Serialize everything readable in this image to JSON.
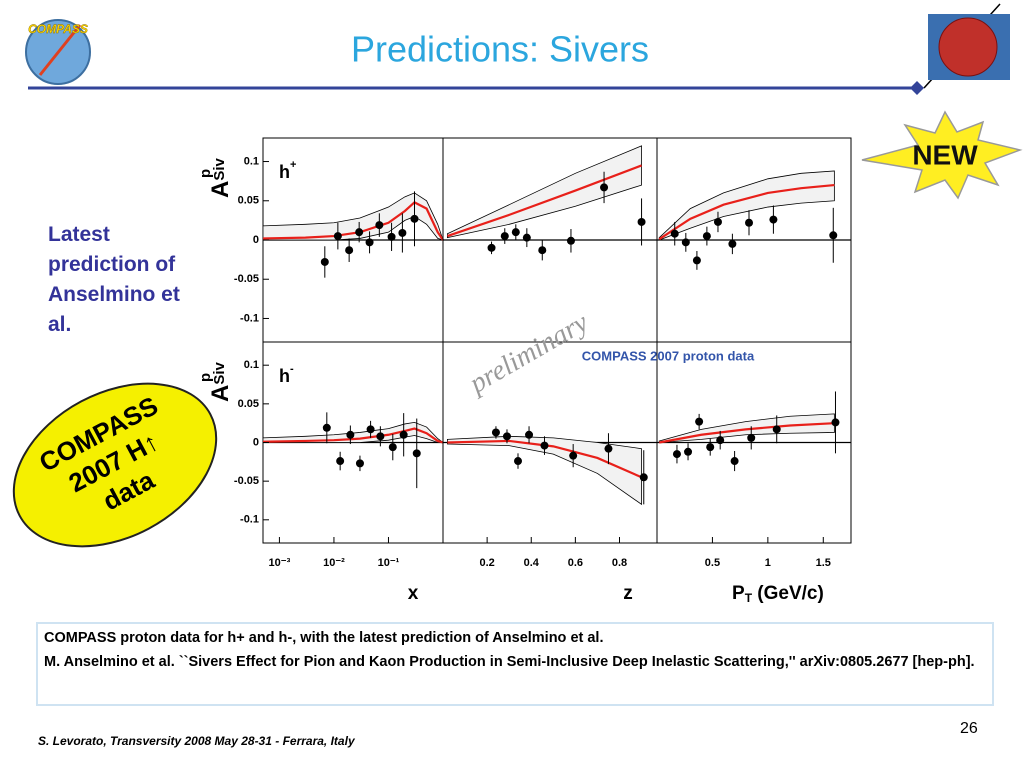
{
  "header": {
    "title": "Predictions: Sivers",
    "logo_text": "COMPASS"
  },
  "sidebar": "Latest prediction of Anselmino et al.",
  "badge_new": "NEW",
  "badge_data": [
    "COMPASS",
    "2007 H↑",
    "data"
  ],
  "annotations": {
    "watermark": "preliminary",
    "dataset": "COMPASS 2007 proton data"
  },
  "caption": [
    "COMPASS proton data for h+ and h-, with the latest prediction of Anselmino et al.",
    "M. Anselmino et al. ``Sivers Effect for Pion and Kaon Production in Semi-Inclusive Deep Inelastic Scattering,''   arXiv:0805.2677 [hep-ph]."
  ],
  "footer": "S. Levorato, Transversity 2008 May 28-31 - Ferrara, Italy",
  "page_number": "26",
  "chart_data": [
    {
      "type": "scatter",
      "log_x": true,
      "panel_label": "h",
      "panel_label_sup": "+",
      "ylabel": "A",
      "ylabel_sup": "p",
      "ylabel_sub": "Siv",
      "xlim": [
        0.0005,
        1
      ],
      "ylim": [
        -0.13,
        0.13
      ],
      "yticks": [
        0.1,
        0.05,
        0,
        -0.05,
        -0.1
      ],
      "x": [
        0.0068,
        0.0118,
        0.019,
        0.029,
        0.045,
        0.068,
        0.114,
        0.18,
        0.3
      ],
      "values": [
        -0.028,
        0.005,
        -0.013,
        0.01,
        -0.003,
        0.019,
        0.004,
        0.009,
        0.027
      ],
      "errors": [
        0.02,
        0.017,
        0.015,
        0.013,
        0.014,
        0.015,
        0.018,
        0.025,
        0.035
      ],
      "curve": {
        "x": [
          0.0005,
          0.003,
          0.01,
          0.03,
          0.1,
          0.2,
          0.3,
          0.5,
          0.8,
          1
        ],
        "values": [
          0.002,
          0.003,
          0.005,
          0.01,
          0.022,
          0.037,
          0.048,
          0.04,
          0.01,
          0
        ],
        "upper": [
          0.018,
          0.02,
          0.022,
          0.028,
          0.042,
          0.055,
          0.06,
          0.05,
          0.02,
          0
        ],
        "lower": [
          0,
          0,
          0,
          0.002,
          0.01,
          0.025,
          0.03,
          0.02,
          0.002,
          0
        ]
      }
    },
    {
      "type": "scatter",
      "xlim": [
        0,
        0.97
      ],
      "ylim": [
        -0.13,
        0.13
      ],
      "x": [
        0.22,
        0.28,
        0.33,
        0.38,
        0.45,
        0.58,
        0.73,
        0.9
      ],
      "values": [
        -0.01,
        0.005,
        0.01,
        0.003,
        -0.013,
        -0.001,
        0.067,
        0.023
      ],
      "errors": [
        0.008,
        0.01,
        0.01,
        0.012,
        0.013,
        0.015,
        0.02,
        0.03
      ],
      "curve": {
        "x": [
          0.02,
          0.3,
          0.6,
          0.9
        ],
        "values": [
          0.005,
          0.032,
          0.063,
          0.095
        ],
        "upper": [
          0.008,
          0.045,
          0.085,
          0.12
        ],
        "lower": [
          0.003,
          0.02,
          0.043,
          0.07
        ]
      }
    },
    {
      "type": "scatter",
      "xlim": [
        0,
        1.75
      ],
      "ylim": [
        -0.13,
        0.13
      ],
      "x": [
        0.16,
        0.26,
        0.36,
        0.45,
        0.55,
        0.68,
        0.83,
        1.05,
        1.59
      ],
      "values": [
        0.008,
        -0.003,
        -0.026,
        0.005,
        0.023,
        -0.005,
        0.022,
        0.026,
        0.006
      ],
      "errors": [
        0.015,
        0.012,
        0.012,
        0.012,
        0.013,
        0.013,
        0.016,
        0.018,
        0.035
      ],
      "curve": {
        "x": [
          0.02,
          0.3,
          0.6,
          1.0,
          1.3,
          1.6
        ],
        "values": [
          0.001,
          0.027,
          0.045,
          0.06,
          0.066,
          0.07
        ],
        "upper": [
          0.003,
          0.04,
          0.06,
          0.078,
          0.085,
          0.088
        ],
        "lower": [
          0,
          0.015,
          0.03,
          0.042,
          0.047,
          0.05
        ]
      }
    },
    {
      "type": "scatter",
      "log_x": true,
      "panel_label": "h",
      "panel_label_sup": "-",
      "ylabel": "A",
      "ylabel_sup": "p",
      "ylabel_sub": "Siv",
      "xlabel": "x",
      "xlim": [
        0.0005,
        1
      ],
      "ylim": [
        -0.13,
        0.13
      ],
      "yticks": [
        0.1,
        0.05,
        0,
        -0.05,
        -0.1
      ],
      "xticks": [
        {
          "value": 0.001,
          "label": "10⁻³"
        },
        {
          "value": 0.01,
          "label": "10⁻²"
        },
        {
          "value": 0.1,
          "label": "10⁻¹"
        }
      ],
      "x": [
        0.0074,
        0.013,
        0.02,
        0.03,
        0.047,
        0.071,
        0.12,
        0.19,
        0.33
      ],
      "values": [
        0.019,
        -0.024,
        0.01,
        -0.027,
        0.017,
        0.008,
        -0.006,
        0.01,
        -0.014
      ],
      "errors": [
        0.02,
        0.012,
        0.012,
        0.01,
        0.011,
        0.013,
        0.017,
        0.028,
        0.045
      ],
      "curve": {
        "x": [
          0.0005,
          0.003,
          0.01,
          0.03,
          0.1,
          0.2,
          0.3,
          0.5,
          0.8,
          1
        ],
        "values": [
          0.001,
          0.002,
          0.003,
          0.005,
          0.01,
          0.015,
          0.018,
          0.012,
          0.002,
          0
        ],
        "upper": [
          0.006,
          0.008,
          0.01,
          0.013,
          0.018,
          0.024,
          0.026,
          0.02,
          0.005,
          0
        ],
        "lower": [
          0,
          0,
          0,
          0,
          0.003,
          0.007,
          0.009,
          0.005,
          0,
          0
        ]
      }
    },
    {
      "type": "scatter",
      "xlabel": "z",
      "xlim": [
        0,
        0.97
      ],
      "ylim": [
        -0.13,
        0.13
      ],
      "xticks": [
        0.2,
        0.4,
        0.6,
        0.8
      ],
      "x": [
        0.24,
        0.29,
        0.34,
        0.39,
        0.46,
        0.59,
        0.75,
        0.91
      ],
      "values": [
        0.013,
        0.008,
        -0.024,
        0.01,
        -0.004,
        -0.017,
        -0.008,
        -0.045
      ],
      "errors": [
        0.008,
        0.009,
        0.01,
        0.011,
        0.012,
        0.015,
        0.02,
        0.035
      ],
      "curve": {
        "x": [
          0.02,
          0.3,
          0.5,
          0.7,
          0.9
        ],
        "values": [
          0,
          0.002,
          -0.005,
          -0.02,
          -0.045
        ],
        "upper": [
          0.004,
          0.008,
          0.006,
          0,
          -0.008
        ],
        "lower": [
          -0.002,
          -0.004,
          -0.015,
          -0.04,
          -0.08
        ]
      }
    },
    {
      "type": "scatter",
      "xlabel": "P",
      "xlabel_sub": "T",
      "xlabel_suffix": " (GeV/c)",
      "xlim": [
        0,
        1.75
      ],
      "ylim": [
        -0.13,
        0.13
      ],
      "xticks": [
        0.5,
        1,
        1.5
      ],
      "x": [
        0.18,
        0.28,
        0.38,
        0.48,
        0.57,
        0.7,
        0.85,
        1.08,
        1.61
      ],
      "values": [
        -0.015,
        -0.012,
        0.027,
        -0.006,
        0.003,
        -0.024,
        0.006,
        0.017,
        0.026
      ],
      "errors": [
        0.012,
        0.011,
        0.01,
        0.011,
        0.012,
        0.013,
        0.015,
        0.018,
        0.04
      ],
      "curve": {
        "x": [
          0.02,
          0.4,
          0.8,
          1.2,
          1.6
        ],
        "values": [
          0,
          0.01,
          0.017,
          0.022,
          0.025
        ],
        "upper": [
          0.002,
          0.017,
          0.027,
          0.034,
          0.037
        ],
        "lower": [
          0,
          0.004,
          0.01,
          0.012,
          0.013
        ]
      }
    }
  ]
}
